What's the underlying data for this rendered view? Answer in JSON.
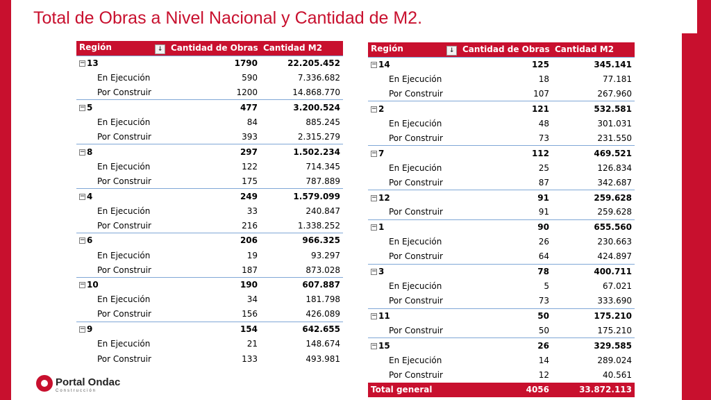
{
  "title": "Total de Obras a Nivel Nacional y Cantidad de M2.",
  "colors": {
    "accent": "#c8102e",
    "divider": "#7fa7d6"
  },
  "headers": {
    "region": "Región",
    "obras": "Cantidad de Obras",
    "m2": "Cantidad M2"
  },
  "filter_icon": "filter-sort-icon",
  "toggle_icon": "collapse-minus-icon",
  "table1": [
    {
      "region": "13",
      "obras": "1790",
      "m2": "22.205.452",
      "rows": [
        {
          "label": "En Ejecución",
          "obras": "590",
          "m2": "7.336.682"
        },
        {
          "label": "Por Construir",
          "obras": "1200",
          "m2": "14.868.770"
        }
      ]
    },
    {
      "region": "5",
      "obras": "477",
      "m2": "3.200.524",
      "rows": [
        {
          "label": "En Ejecución",
          "obras": "84",
          "m2": "885.245"
        },
        {
          "label": "Por Construir",
          "obras": "393",
          "m2": "2.315.279"
        }
      ]
    },
    {
      "region": "8",
      "obras": "297",
      "m2": "1.502.234",
      "rows": [
        {
          "label": "En Ejecución",
          "obras": "122",
          "m2": "714.345"
        },
        {
          "label": "Por Construir",
          "obras": "175",
          "m2": "787.889"
        }
      ]
    },
    {
      "region": "4",
      "obras": "249",
      "m2": "1.579.099",
      "rows": [
        {
          "label": "En Ejecución",
          "obras": "33",
          "m2": "240.847"
        },
        {
          "label": "Por Construir",
          "obras": "216",
          "m2": "1.338.252"
        }
      ]
    },
    {
      "region": "6",
      "obras": "206",
      "m2": "966.325",
      "rows": [
        {
          "label": "En Ejecución",
          "obras": "19",
          "m2": "93.297"
        },
        {
          "label": "Por Construir",
          "obras": "187",
          "m2": "873.028"
        }
      ]
    },
    {
      "region": "10",
      "obras": "190",
      "m2": "607.887",
      "rows": [
        {
          "label": "En Ejecución",
          "obras": "34",
          "m2": "181.798"
        },
        {
          "label": "Por Construir",
          "obras": "156",
          "m2": "426.089"
        }
      ]
    },
    {
      "region": "9",
      "obras": "154",
      "m2": "642.655",
      "rows": [
        {
          "label": "En Ejecución",
          "obras": "21",
          "m2": "148.674"
        },
        {
          "label": "Por Construir",
          "obras": "133",
          "m2": "493.981"
        }
      ]
    }
  ],
  "table2": [
    {
      "region": "14",
      "obras": "125",
      "m2": "345.141",
      "rows": [
        {
          "label": "En Ejecución",
          "obras": "18",
          "m2": "77.181"
        },
        {
          "label": "Por Construir",
          "obras": "107",
          "m2": "267.960"
        }
      ]
    },
    {
      "region": "2",
      "obras": "121",
      "m2": "532.581",
      "rows": [
        {
          "label": "En Ejecución",
          "obras": "48",
          "m2": "301.031"
        },
        {
          "label": "Por Construir",
          "obras": "73",
          "m2": "231.550"
        }
      ]
    },
    {
      "region": "7",
      "obras": "112",
      "m2": "469.521",
      "rows": [
        {
          "label": "En Ejecución",
          "obras": "25",
          "m2": "126.834"
        },
        {
          "label": "Por Construir",
          "obras": "87",
          "m2": "342.687"
        }
      ]
    },
    {
      "region": "12",
      "obras": "91",
      "m2": "259.628",
      "rows": [
        {
          "label": "Por Construir",
          "obras": "91",
          "m2": "259.628"
        }
      ]
    },
    {
      "region": "1",
      "obras": "90",
      "m2": "655.560",
      "rows": [
        {
          "label": "En Ejecución",
          "obras": "26",
          "m2": "230.663"
        },
        {
          "label": "Por Construir",
          "obras": "64",
          "m2": "424.897"
        }
      ]
    },
    {
      "region": "3",
      "obras": "78",
      "m2": "400.711",
      "rows": [
        {
          "label": "En Ejecución",
          "obras": "5",
          "m2": "67.021"
        },
        {
          "label": "Por Construir",
          "obras": "73",
          "m2": "333.690"
        }
      ]
    },
    {
      "region": "11",
      "obras": "50",
      "m2": "175.210",
      "rows": [
        {
          "label": "Por Construir",
          "obras": "50",
          "m2": "175.210"
        }
      ]
    },
    {
      "region": "15",
      "obras": "26",
      "m2": "329.585",
      "rows": [
        {
          "label": "En Ejecución",
          "obras": "14",
          "m2": "289.024"
        },
        {
          "label": "Por Construir",
          "obras": "12",
          "m2": "40.561"
        }
      ]
    }
  ],
  "total": {
    "label": "Total general",
    "obras": "4056",
    "m2": "33.872.113"
  },
  "logo": {
    "name": "Portal Ondac",
    "sub": "Construcción"
  }
}
